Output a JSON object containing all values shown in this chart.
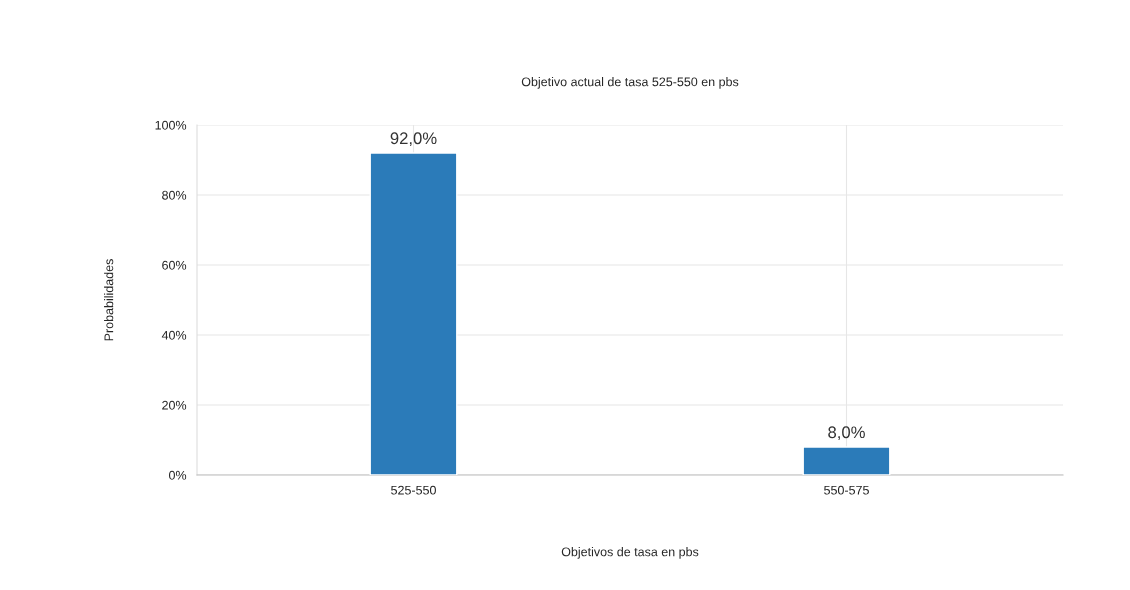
{
  "chart_data": {
    "type": "bar",
    "title": "Objetivo actual de tasa 525-550 en pbs",
    "xlabel": "Objetivos de tasa en pbs",
    "ylabel": "Probabilidades",
    "categories": [
      "525-550",
      "550-575"
    ],
    "values": [
      92.0,
      8.0
    ],
    "color": "#2b7bb9",
    "value_labels": [
      "92,0%",
      "8,0%"
    ],
    "ylim": [
      0,
      100
    ],
    "yticks": [
      {
        "value": 0,
        "label": "0%"
      },
      {
        "value": 20,
        "label": "20%"
      },
      {
        "value": 40,
        "label": "40%"
      },
      {
        "value": 60,
        "label": "60%"
      },
      {
        "value": 80,
        "label": "80%"
      },
      {
        "value": 100,
        "label": "100%"
      }
    ],
    "grid": true,
    "legend": false
  }
}
